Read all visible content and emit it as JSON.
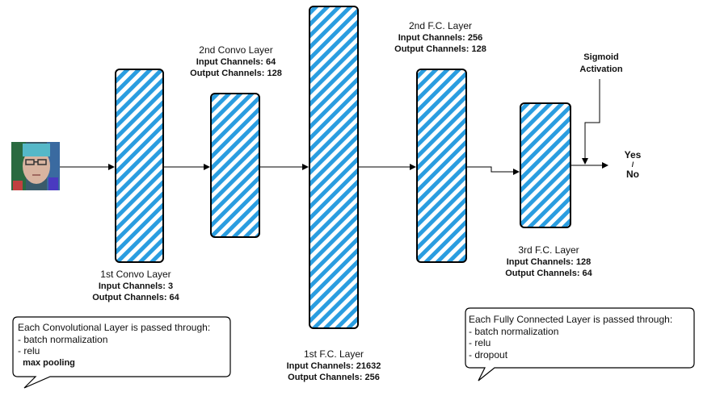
{
  "input_image": {
    "icon": "face-photo-icon"
  },
  "colors": {
    "block_fill": "#2a9de0",
    "block_stroke": "#000000",
    "arrow": "#000000"
  },
  "layers": {
    "conv1": {
      "title": "1st Convo Layer",
      "input": "Input Channels: 3",
      "output": "Output Channels: 64"
    },
    "conv2": {
      "title": "2nd Convo Layer",
      "input": "Input Channels: 64",
      "output": "Output Channels: 128"
    },
    "fc1": {
      "title": "1st F.C. Layer",
      "input": "Input Channels: 21632",
      "output": "Output Channels: 256"
    },
    "fc2": {
      "title": "2nd F.C. Layer",
      "input": "Input Channels: 256",
      "output": "Output Channels: 128"
    },
    "fc3": {
      "title": "3rd F.C. Layer",
      "input": "Input Channels: 128",
      "output": "Output Channels: 64"
    }
  },
  "sigmoid": {
    "line1": "Sigmoid",
    "line2": "Activation"
  },
  "output": {
    "yes": "Yes",
    "sep": "/",
    "no": "No"
  },
  "notes": {
    "conv": {
      "title": "Each Convolutional Layer is passed through:",
      "items": [
        "- batch normalization",
        "- relu",
        "  max pooling"
      ]
    },
    "fc": {
      "title": "Each Fully Connected Layer is passed through:",
      "items": [
        "- batch normalization",
        "- relu",
        "- dropout"
      ]
    }
  }
}
